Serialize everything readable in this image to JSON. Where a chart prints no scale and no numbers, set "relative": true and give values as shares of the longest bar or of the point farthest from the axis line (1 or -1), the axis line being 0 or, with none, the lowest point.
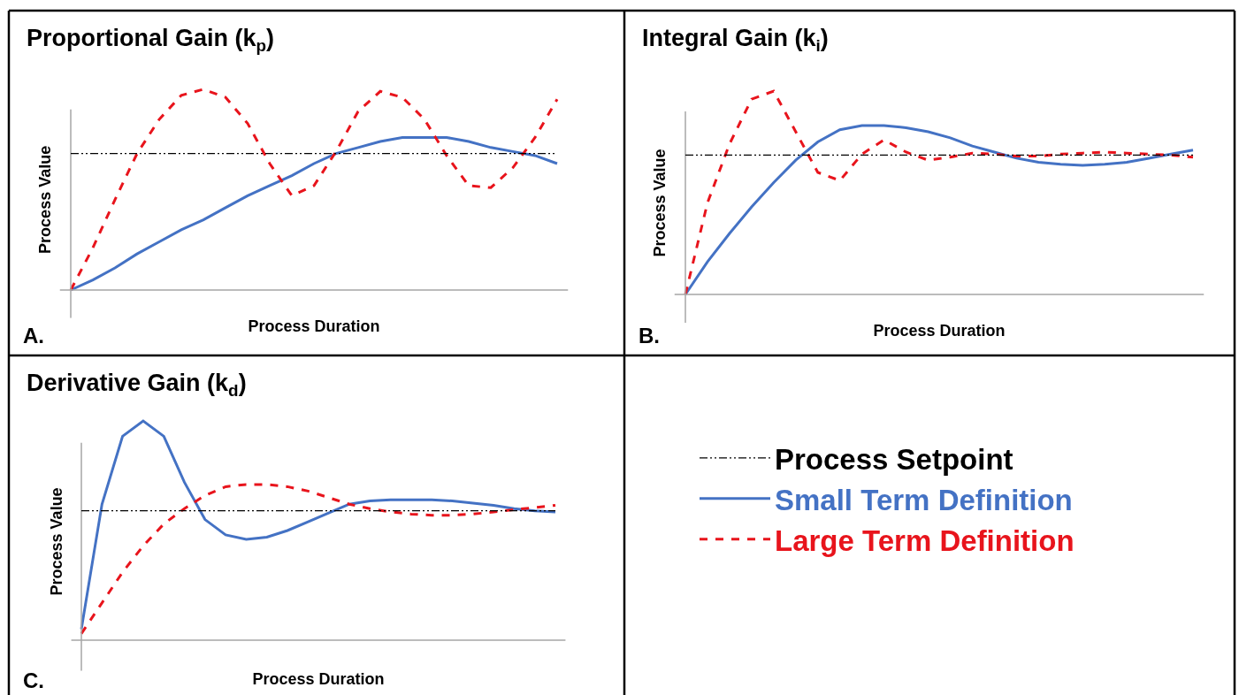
{
  "chart_data": [
    {
      "type": "line",
      "title": "Proportional Gain (k$_{p}$)",
      "xlabel": "Process Duration",
      "ylabel": "Process Value",
      "relative": true,
      "annotations": [
        "A."
      ],
      "categories": [
        null,
        null,
        null,
        null,
        null,
        null,
        null,
        null,
        null,
        null,
        null,
        null,
        null,
        null,
        null,
        null,
        null,
        null,
        null,
        null,
        null,
        null,
        null
      ],
      "series": [
        {
          "color": "#4472c4",
          "line_style": "solid",
          "values": [
            0,
            0.05,
            0.11,
            0.18,
            0.24,
            0.3,
            0.35,
            0.41,
            0.47,
            0.52,
            0.57,
            0.63,
            0.68,
            0.71,
            0.74,
            0.76,
            0.76,
            0.76,
            0.74,
            0.71,
            0.69,
            0.67,
            0.63
          ]
        },
        {
          "color": "#e8141c",
          "line_style": "dashed",
          "values": [
            0,
            0.21,
            0.45,
            0.68,
            0.85,
            0.97,
            1.0,
            0.96,
            0.83,
            0.63,
            0.47,
            0.52,
            0.69,
            0.89,
            0.99,
            0.96,
            0.85,
            0.67,
            0.52,
            0.51,
            0.61,
            0.76,
            0.95
          ]
        }
      ],
      "ref_lines": [
        {
          "axis": "y",
          "value": 0.68,
          "color": "#000000"
        }
      ]
    },
    {
      "type": "line",
      "title": "Integral Gain (k$_{i}$)",
      "xlabel": "Process Duration",
      "ylabel": "Process Value",
      "relative": true,
      "annotations": [
        "B."
      ],
      "categories": [
        null,
        null,
        null,
        null,
        null,
        null,
        null,
        null,
        null,
        null,
        null,
        null,
        null,
        null,
        null,
        null,
        null,
        null,
        null,
        null,
        null,
        null,
        null,
        null
      ],
      "series": [
        {
          "color": "#4472c4",
          "line_style": "solid",
          "values": [
            0,
            0.16,
            0.3,
            0.43,
            0.55,
            0.66,
            0.75,
            0.81,
            0.83,
            0.83,
            0.82,
            0.8,
            0.77,
            0.73,
            0.7,
            0.67,
            0.65,
            0.64,
            0.635,
            0.64,
            0.65,
            0.67,
            0.69,
            0.71
          ]
        },
        {
          "color": "#e8141c",
          "line_style": "dashed",
          "values": [
            0,
            0.45,
            0.74,
            0.96,
            1.0,
            0.8,
            0.6,
            0.56,
            0.69,
            0.76,
            0.7,
            0.66,
            0.675,
            0.695,
            0.69,
            0.68,
            0.68,
            0.69,
            0.695,
            0.7,
            0.695,
            0.69,
            0.685,
            0.675
          ]
        }
      ],
      "ref_lines": [
        {
          "axis": "y",
          "value": 0.685,
          "color": "#000000"
        }
      ]
    },
    {
      "type": "line",
      "title": "Derivative Gain (k$_{d}$)",
      "xlabel": "Process Duration",
      "ylabel": "Process Value",
      "relative": true,
      "annotations": [
        "C."
      ],
      "legend": "right",
      "categories": [
        null,
        null,
        null,
        null,
        null,
        null,
        null,
        null,
        null,
        null,
        null,
        null,
        null,
        null,
        null,
        null,
        null,
        null,
        null,
        null,
        null,
        null,
        null,
        null
      ],
      "series": [
        {
          "name": "Small Term Definition",
          "color": "#4472c4",
          "line_style": "solid",
          "values": [
            0.05,
            0.62,
            0.93,
            1.0,
            0.93,
            0.72,
            0.55,
            0.48,
            0.46,
            0.47,
            0.5,
            0.54,
            0.58,
            0.62,
            0.635,
            0.64,
            0.64,
            0.64,
            0.635,
            0.625,
            0.615,
            0.6,
            0.59,
            0.585
          ]
        },
        {
          "name": "Large Term Definition",
          "color": "#e8141c",
          "line_style": "dashed",
          "values": [
            0.03,
            0.17,
            0.31,
            0.43,
            0.53,
            0.6,
            0.66,
            0.7,
            0.71,
            0.71,
            0.7,
            0.68,
            0.65,
            0.62,
            0.6,
            0.585,
            0.575,
            0.57,
            0.57,
            0.575,
            0.585,
            0.595,
            0.605,
            0.615
          ]
        }
      ],
      "ref_lines": [
        {
          "axis": "y",
          "value": 0.59,
          "label": "Process Setpoint",
          "color": "#000000"
        }
      ]
    }
  ]
}
